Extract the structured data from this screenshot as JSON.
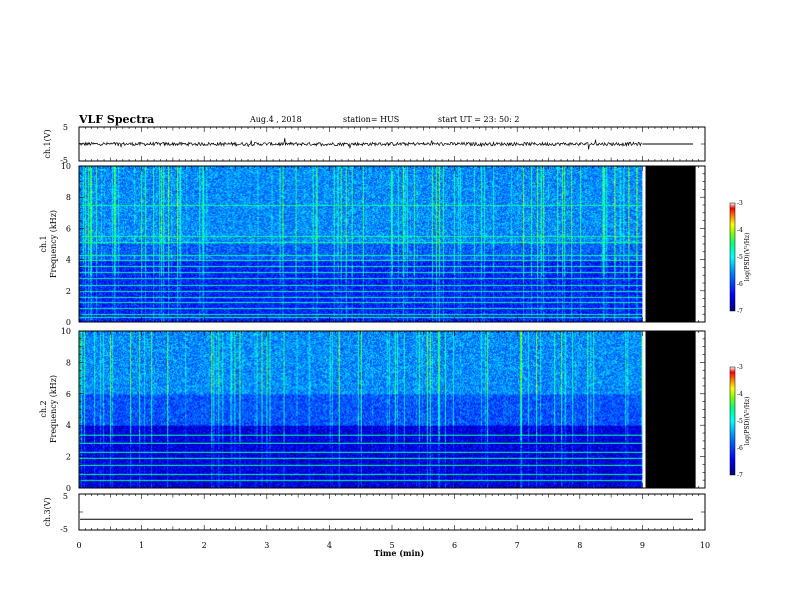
{
  "header": {
    "title": "VLF Spectra",
    "date": "Aug.4 , 2018",
    "station": "station= HUS",
    "start": "start UT = 23: 50: 2"
  },
  "chart_data": [
    {
      "type": "line",
      "panel": "ch1-waveform",
      "ylabel": "ch.1(V)",
      "ylim": [
        -5,
        5
      ],
      "yticks": [
        "5",
        "-5"
      ],
      "xlim": [
        0,
        10
      ],
      "signal_end_min": 9.0,
      "noise_amplitude_v": 1.0,
      "after_end_value_v": 0,
      "line_color": "#000000"
    },
    {
      "type": "heatmap",
      "panel": "ch1-spectrogram",
      "ylabel": "ch.1\nFrequency (kHz)",
      "ylim": [
        0,
        10
      ],
      "yticks": [
        "0",
        "2",
        "4",
        "6",
        "8",
        "10"
      ],
      "xlim": [
        0,
        10
      ],
      "data_end_min": 9.0,
      "no_data_from_min": 9.05,
      "no_data_to_min": 9.85,
      "horizontal_lines_khz": [
        0.3,
        0.5,
        0.9,
        1.3,
        1.6,
        2.0,
        2.4,
        2.8,
        3.2,
        3.6,
        4.0,
        4.3,
        5.1,
        5.5,
        7.5
      ],
      "colorbar": {
        "label": "log(PSD)(V²/Hz)",
        "range": [
          -7,
          -3
        ],
        "ticks": [
          "-3",
          "-4",
          "-5",
          "-6",
          "-7"
        ],
        "colors": [
          "#00007f",
          "#0000ff",
          "#0080ff",
          "#00ffff",
          "#00ff80",
          "#80ff00",
          "#ffff00",
          "#ff8000",
          "#ff0000",
          "#ffffff"
        ]
      }
    },
    {
      "type": "heatmap",
      "panel": "ch2-spectrogram",
      "ylabel": "ch.2\nFrequency (kHz)",
      "ylim": [
        0,
        10
      ],
      "yticks": [
        "0",
        "2",
        "4",
        "6",
        "8",
        "10"
      ],
      "xlim": [
        0,
        10
      ],
      "data_end_min": 9.0,
      "no_data_from_min": 9.05,
      "no_data_to_min": 9.85,
      "horizontal_lines_khz": [
        0.5,
        0.9,
        1.5,
        1.9,
        2.3,
        2.9,
        3.4
      ],
      "colorbar": {
        "label": "log(PSD)(V²/Hz)",
        "range": [
          -7,
          -3
        ],
        "ticks": [
          "-3",
          "-4",
          "-5",
          "-6",
          "-7"
        ],
        "colors": [
          "#00007f",
          "#0000ff",
          "#0080ff",
          "#00ffff",
          "#00ff80",
          "#80ff00",
          "#ffff00",
          "#ff8000",
          "#ff0000",
          "#ffffff"
        ]
      }
    },
    {
      "type": "line",
      "panel": "ch3-waveform",
      "ylabel": "ch.3(V)",
      "ylim": [
        -5,
        5
      ],
      "yticks": [
        "5",
        "-5"
      ],
      "xlim": [
        0,
        10
      ],
      "flat_value_v": -2.0,
      "line_color": "#000000"
    }
  ],
  "xaxis": {
    "label": "Time (min)",
    "ticks": [
      "0",
      "1",
      "2",
      "3",
      "4",
      "5",
      "6",
      "7",
      "8",
      "9",
      "10"
    ]
  }
}
